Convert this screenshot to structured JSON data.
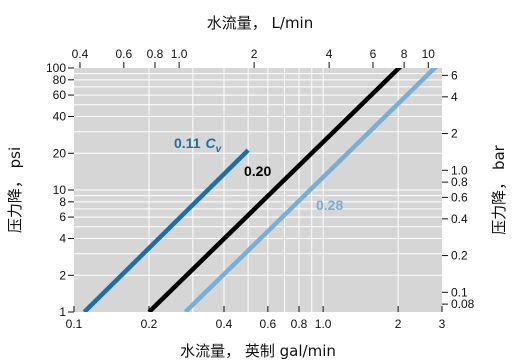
{
  "chart_data": {
    "type": "line",
    "x_label_bottom": "水流量，  英制 gal/min",
    "x_label_top": "水流量，  L/min",
    "y_label_left": "压力降，  psi",
    "y_label_right": "压力降，  bar",
    "x_scale": "log",
    "y_scale": "log",
    "grid": true,
    "xlim": [
      0.1,
      3
    ],
    "ylim": [
      1,
      100
    ],
    "x_ticks_bottom": [
      "0.1",
      "0.2",
      "0.4",
      "0.6",
      "0.8",
      "1.0",
      "2",
      "3"
    ],
    "x_ticks_top": [
      "0.4",
      "0.6",
      "0.8",
      "1.0",
      "2",
      "4",
      "6",
      "8",
      "10"
    ],
    "y_ticks_left": [
      "1",
      "2",
      "4",
      "6",
      "8",
      "10",
      "20",
      "40",
      "60",
      "80",
      "100"
    ],
    "y_ticks_right": [
      "0.08",
      "0.1",
      "0.2",
      "0.4",
      "0.6",
      "0.8",
      "1.0",
      "2",
      "4",
      "6"
    ],
    "series": [
      {
        "name": "0.11 Cv",
        "label_main": "0.11",
        "label_suffix": "C",
        "label_sub": "v",
        "color": "#1e6fa8",
        "x": [
          0.11,
          0.5
        ],
        "y": [
          1,
          21.2
        ]
      },
      {
        "name": "0.20",
        "label_main": "0.20",
        "label_suffix": "",
        "label_sub": "",
        "color": "#000000",
        "x": [
          0.2,
          2.3
        ],
        "y": [
          1,
          130
        ]
      },
      {
        "name": "0.28",
        "label_main": "0.28",
        "label_suffix": "",
        "label_sub": "",
        "color": "#79aed6",
        "x": [
          0.28,
          2.9
        ],
        "y": [
          1,
          107
        ]
      }
    ]
  }
}
